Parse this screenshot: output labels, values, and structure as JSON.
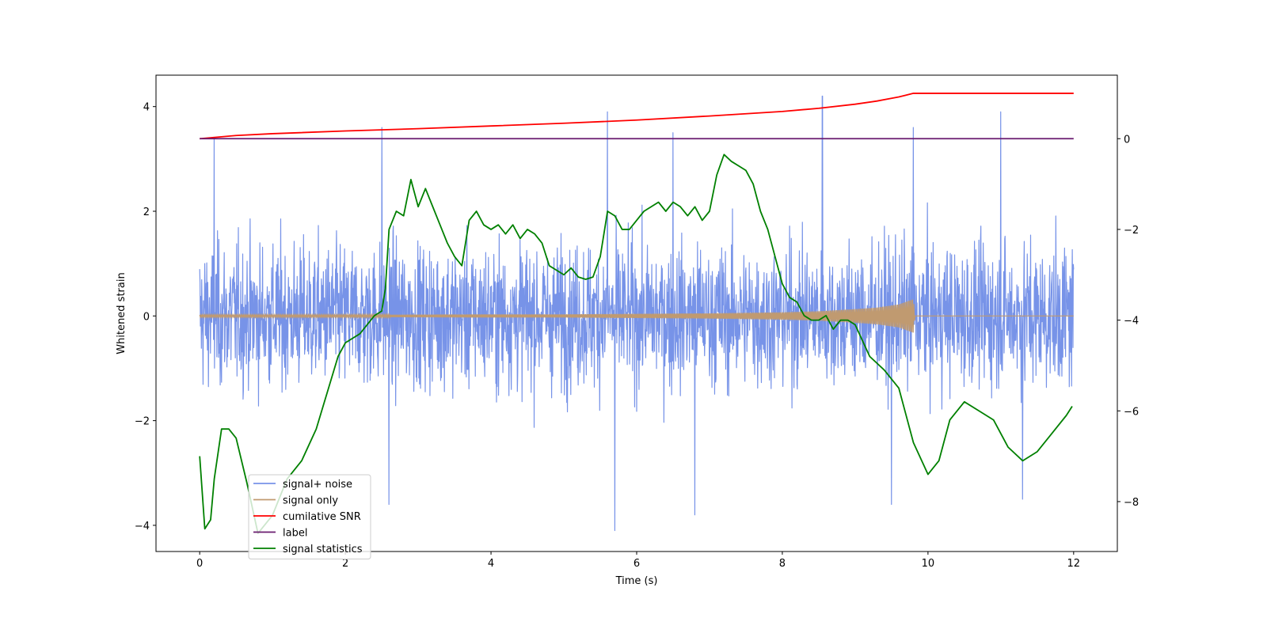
{
  "chart_data": {
    "type": "line",
    "title": "",
    "xlabel": "Time (s)",
    "ylabel": "Whitened strain",
    "ylabel_right": "",
    "xlim": [
      -0.6,
      12.6
    ],
    "ylim_left": [
      -4.5,
      4.6
    ],
    "ylim_right": [
      -9.1,
      1.4
    ],
    "x_ticks": [
      0,
      2,
      4,
      6,
      8,
      10,
      12
    ],
    "y_ticks_left": [
      -4,
      -2,
      0,
      2,
      4
    ],
    "y_ticks_right": [
      -8,
      -6,
      -4,
      -2,
      0
    ],
    "grid": false,
    "legend_position": "lower-left",
    "series": [
      {
        "name": "signal+ noise",
        "axis": "left",
        "color": "#7793e8",
        "x_range": [
          0,
          12
        ],
        "typical_amplitude": [
          -2.3,
          2.3
        ],
        "extremes": [
          -4.1,
          4.2
        ],
        "notable_peaks": [
          {
            "x": 0.2,
            "y": 3.4
          },
          {
            "x": 2.5,
            "y": 3.6
          },
          {
            "x": 5.6,
            "y": 3.9
          },
          {
            "x": 6.5,
            "y": 3.5
          },
          {
            "x": 8.55,
            "y": 4.2
          },
          {
            "x": 9.8,
            "y": 3.6
          },
          {
            "x": 11.0,
            "y": 3.9
          },
          {
            "x": 2.6,
            "y": -3.6
          },
          {
            "x": 5.7,
            "y": -4.1
          },
          {
            "x": 6.8,
            "y": -3.8
          },
          {
            "x": 9.5,
            "y": -3.6
          },
          {
            "x": 11.3,
            "y": -3.5
          }
        ]
      },
      {
        "name": "signal only",
        "axis": "left",
        "color": "#c09a70",
        "x": [
          0,
          2,
          4,
          5,
          6,
          7,
          8,
          8.5,
          9,
          9.3,
          9.6,
          9.8,
          9.82,
          12
        ],
        "envelope": [
          0.02,
          0.02,
          0.03,
          0.03,
          0.04,
          0.05,
          0.07,
          0.09,
          0.13,
          0.16,
          0.22,
          0.32,
          0.0,
          0.0
        ]
      },
      {
        "name": "cumilative SNR",
        "axis": "right",
        "color": "#ff0000",
        "x": [
          0,
          0.5,
          1,
          2,
          3,
          4,
          5,
          6,
          7,
          8,
          8.5,
          9,
          9.3,
          9.6,
          9.8,
          9.85,
          12
        ],
        "values": [
          0.0,
          0.07,
          0.11,
          0.17,
          0.22,
          0.28,
          0.34,
          0.41,
          0.5,
          0.6,
          0.67,
          0.76,
          0.83,
          0.92,
          1.0,
          1.0,
          1.0
        ]
      },
      {
        "name": "label",
        "axis": "right",
        "color": "#6a1b6f",
        "x": [
          0,
          12
        ],
        "values": [
          0,
          0
        ]
      },
      {
        "name": "signal statistics",
        "axis": "right",
        "color": "#008000",
        "x": [
          0,
          0.07,
          0.15,
          0.2,
          0.3,
          0.4,
          0.5,
          0.65,
          0.8,
          1.0,
          1.2,
          1.4,
          1.6,
          1.75,
          1.9,
          2.0,
          2.1,
          2.2,
          2.3,
          2.4,
          2.5,
          2.55,
          2.6,
          2.7,
          2.8,
          2.9,
          3.0,
          3.1,
          3.2,
          3.3,
          3.4,
          3.5,
          3.6,
          3.7,
          3.8,
          3.9,
          4.0,
          4.1,
          4.2,
          4.3,
          4.4,
          4.5,
          4.6,
          4.7,
          4.8,
          4.9,
          5.0,
          5.1,
          5.2,
          5.3,
          5.4,
          5.5,
          5.6,
          5.7,
          5.8,
          5.9,
          6.0,
          6.1,
          6.2,
          6.3,
          6.4,
          6.5,
          6.6,
          6.7,
          6.8,
          6.9,
          7.0,
          7.1,
          7.2,
          7.3,
          7.4,
          7.5,
          7.6,
          7.7,
          7.8,
          7.9,
          8.0,
          8.1,
          8.2,
          8.3,
          8.4,
          8.5,
          8.6,
          8.7,
          8.8,
          8.9,
          9.0,
          9.2,
          9.4,
          9.6,
          9.8,
          10.0,
          10.15,
          10.3,
          10.5,
          10.7,
          10.9,
          11.1,
          11.3,
          11.5,
          11.7,
          11.9,
          11.98
        ],
        "values": [
          -7.0,
          -8.6,
          -8.4,
          -7.5,
          -6.4,
          -6.4,
          -6.6,
          -7.6,
          -8.7,
          -8.3,
          -7.5,
          -7.1,
          -6.4,
          -5.6,
          -4.8,
          -4.5,
          -4.4,
          -4.3,
          -4.1,
          -3.9,
          -3.8,
          -3.3,
          -2.0,
          -1.6,
          -1.7,
          -0.9,
          -1.5,
          -1.1,
          -1.5,
          -1.9,
          -2.3,
          -2.6,
          -2.8,
          -1.8,
          -1.6,
          -1.9,
          -2.0,
          -1.9,
          -2.1,
          -1.9,
          -2.2,
          -2.0,
          -2.1,
          -2.3,
          -2.8,
          -2.9,
          -3.0,
          -2.85,
          -3.05,
          -3.1,
          -3.05,
          -2.6,
          -1.6,
          -1.7,
          -2.0,
          -2.0,
          -1.8,
          -1.6,
          -1.5,
          -1.4,
          -1.6,
          -1.4,
          -1.5,
          -1.7,
          -1.5,
          -1.8,
          -1.6,
          -0.8,
          -0.35,
          -0.5,
          -0.6,
          -0.7,
          -1.0,
          -1.6,
          -2.0,
          -2.6,
          -3.2,
          -3.5,
          -3.6,
          -3.9,
          -4.0,
          -4.0,
          -3.9,
          -4.2,
          -4.0,
          -4.0,
          -4.1,
          -4.8,
          -5.1,
          -5.5,
          -6.7,
          -7.4,
          -7.1,
          -6.2,
          -5.8,
          -6.0,
          -6.2,
          -6.8,
          -7.1,
          -6.9,
          -6.5,
          -6.1,
          -5.9
        ]
      }
    ]
  }
}
